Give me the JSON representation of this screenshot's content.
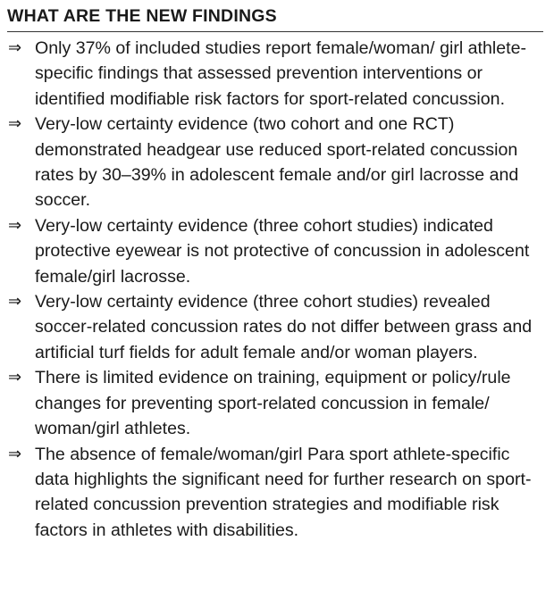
{
  "heading": "WHAT ARE THE NEW FINDINGS",
  "bullet_symbol": "⇒",
  "findings": [
    "Only 37% of included studies report female/woman/ girl athlete-specific findings that assessed prevention interventions or identified modifiable risk factors for sport-related concussion.",
    "Very-low certainty evidence (two cohort and one RCT) demonstrated headgear use reduced sport-related concussion rates by 30–39% in adolescent female and/or girl lacrosse and soccer.",
    "Very-low certainty evidence (three cohort studies) indicated protective eyewear is not protective of concussion in adolescent female/girl lacrosse.",
    "Very-low certainty evidence (three cohort studies) revealed soccer-related concussion rates do not differ between grass and artificial turf fields for adult female and/or woman players.",
    "There is limited evidence on training, equipment or policy/rule changes for preventing sport-related concussion in female/ woman/girl athletes.",
    "The absence of female/woman/girl Para sport athlete-specific data highlights the significant need for further research on sport-related concussion prevention strategies and modifiable risk factors in athletes with disabilities."
  ]
}
